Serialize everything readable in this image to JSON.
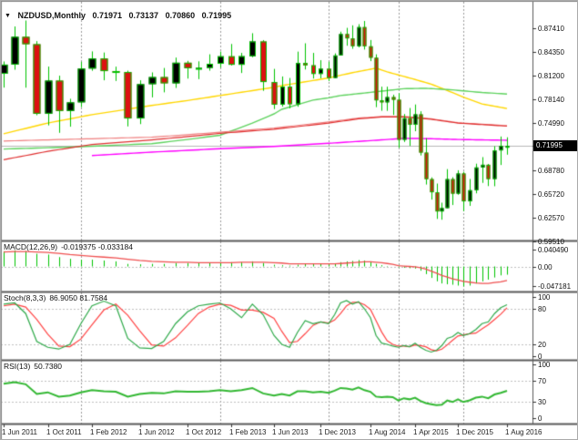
{
  "header": {
    "dropdown_icon": "▼",
    "symbol": "NZDUSD,Monthly",
    "open": "0.71971",
    "high": "0.73137",
    "low": "0.70860",
    "close": "0.71995"
  },
  "colors": {
    "bull_body": "#000000",
    "bear_body": "#dd1111",
    "candle_outline": "#00c400",
    "wick": "#00c400",
    "ma_yellow": "#ffd700",
    "ma_green": "#5fd35f",
    "ma_red": "#e03030",
    "ma_salmon": "#f08080",
    "ma_magenta": "#ff00ff",
    "macd_hist": "#00c400",
    "macd_signal": "#f05050",
    "stoch_main": "#2faa4a",
    "stoch_signal": "#ff4444",
    "rsi_line": "#33b833",
    "price_line": "#b8b8b8",
    "grid": "#999999",
    "level_dash": "#c0c0c0",
    "tag_bg": "#000000",
    "tag_fg": "#ffffff",
    "frame": "#5a5a5a",
    "text": "#111111"
  },
  "chart_data": {
    "type": "candlestick",
    "symbol": "NZDUSD",
    "timeframe": "Monthly",
    "current_price": 0.71995,
    "price_axis": [
      "0.87410",
      "0.84350",
      "0.81200",
      "0.78140",
      "0.74990",
      "0.68780",
      "0.65720",
      "0.62570",
      "0.59510"
    ],
    "x_labels": [
      {
        "text": "1 Jun 2011",
        "month": 0
      },
      {
        "text": "1 Oct 2011",
        "month": 4
      },
      {
        "text": "1 Feb 2012",
        "month": 8
      },
      {
        "text": "1 Jun 2012",
        "month": 12
      },
      {
        "text": "1 Oct 2012",
        "month": 16
      },
      {
        "text": "1 Feb 2013",
        "month": 20
      },
      {
        "text": "1 Jun 2013",
        "month": 24
      },
      {
        "text": "1 Dec 2013",
        "month": 30
      },
      {
        "text": "1 Aug 2014",
        "month": 38
      },
      {
        "text": "1 Apr 2015",
        "month": 46
      },
      {
        "text": "1 Dec 2015",
        "month": 54
      },
      {
        "text": "1 Aug 2016",
        "month": 62
      }
    ],
    "year_gridline_months": [
      7,
      19,
      31,
      43,
      55
    ],
    "x_anchors": [
      [
        0,
        3
      ],
      [
        8,
        100
      ],
      [
        16,
        205
      ],
      [
        24,
        300
      ],
      [
        31,
        360
      ],
      [
        38,
        406
      ],
      [
        46,
        455
      ],
      [
        55,
        508
      ],
      [
        62,
        556
      ]
    ],
    "months": [
      "2011-06",
      "2011-07",
      "2011-08",
      "2011-09",
      "2011-10",
      "2011-11",
      "2011-12",
      "2012-01",
      "2012-02",
      "2012-03",
      "2012-04",
      "2012-05",
      "2012-06",
      "2012-07",
      "2012-08",
      "2012-09",
      "2012-10",
      "2012-11",
      "2012-12",
      "2013-01",
      "2013-02",
      "2013-03",
      "2013-04",
      "2013-05",
      "2013-06",
      "2013-07",
      "2013-08",
      "2013-09",
      "2013-10",
      "2013-11",
      "2013-12",
      "2014-01",
      "2014-02",
      "2014-03",
      "2014-04",
      "2014-05",
      "2014-06",
      "2014-07",
      "2014-08",
      "2014-09",
      "2014-10",
      "2014-11",
      "2014-12",
      "2015-01",
      "2015-02",
      "2015-03",
      "2015-04",
      "2015-05",
      "2015-06",
      "2015-07",
      "2015-08",
      "2015-09",
      "2015-10",
      "2015-11",
      "2015-12",
      "2016-01",
      "2016-02",
      "2016-03",
      "2016-04",
      "2016-05",
      "2016-06",
      "2016-07",
      "2016-08"
    ],
    "candles": [
      [
        0.8145,
        0.8306,
        0.7964,
        0.8265
      ],
      [
        0.8265,
        0.8764,
        0.8198,
        0.8629
      ],
      [
        0.8629,
        0.8842,
        0.7963,
        0.8532
      ],
      [
        0.8532,
        0.8572,
        0.7602,
        0.7622
      ],
      [
        0.7622,
        0.8239,
        0.7469,
        0.8056
      ],
      [
        0.8056,
        0.812,
        0.7372,
        0.7658
      ],
      [
        0.7658,
        0.7818,
        0.7452,
        0.7771
      ],
      [
        0.7771,
        0.8303,
        0.7708,
        0.8213
      ],
      [
        0.8213,
        0.8438,
        0.8184,
        0.8345
      ],
      [
        0.8345,
        0.8423,
        0.806,
        0.818
      ],
      [
        0.818,
        0.8238,
        0.8051,
        0.8168
      ],
      [
        0.8168,
        0.8186,
        0.7456,
        0.756
      ],
      [
        0.756,
        0.806,
        0.7486,
        0.8009
      ],
      [
        0.8009,
        0.8163,
        0.7836,
        0.8102
      ],
      [
        0.8102,
        0.8221,
        0.7902,
        0.802
      ],
      [
        0.802,
        0.8357,
        0.796,
        0.829
      ],
      [
        0.829,
        0.8314,
        0.8082,
        0.8218
      ],
      [
        0.8218,
        0.8308,
        0.8075,
        0.8222
      ],
      [
        0.8222,
        0.84,
        0.8186,
        0.8276
      ],
      [
        0.8276,
        0.8436,
        0.8225,
        0.8374
      ],
      [
        0.8374,
        0.8535,
        0.8253,
        0.8263
      ],
      [
        0.8263,
        0.8418,
        0.8155,
        0.8375
      ],
      [
        0.8375,
        0.8676,
        0.8361,
        0.8568
      ],
      [
        0.8568,
        0.8585,
        0.7922,
        0.8037
      ],
      [
        0.8037,
        0.8209,
        0.7683,
        0.7741
      ],
      [
        0.7741,
        0.811,
        0.7714,
        0.7976
      ],
      [
        0.7976,
        0.809,
        0.7692,
        0.7747
      ],
      [
        0.7747,
        0.8435,
        0.7713,
        0.8286
      ],
      [
        0.8286,
        0.8544,
        0.8201,
        0.8256
      ],
      [
        0.8256,
        0.8418,
        0.8083,
        0.8143
      ],
      [
        0.8143,
        0.8323,
        0.8085,
        0.821
      ],
      [
        0.821,
        0.8303,
        0.805,
        0.809
      ],
      [
        0.809,
        0.8412,
        0.8088,
        0.8385
      ],
      [
        0.8385,
        0.8696,
        0.8383,
        0.8665
      ],
      [
        0.8665,
        0.8746,
        0.8512,
        0.8608
      ],
      [
        0.8608,
        0.8779,
        0.8472,
        0.8506
      ],
      [
        0.8506,
        0.8794,
        0.849,
        0.8756
      ],
      [
        0.8756,
        0.8836,
        0.8462,
        0.8505
      ],
      [
        0.8505,
        0.8587,
        0.8311,
        0.8355
      ],
      [
        0.8355,
        0.84,
        0.7708,
        0.7797
      ],
      [
        0.7797,
        0.7976,
        0.7661,
        0.7771
      ],
      [
        0.7771,
        0.7976,
        0.766,
        0.784
      ],
      [
        0.784,
        0.7871,
        0.7606,
        0.7805
      ],
      [
        0.7805,
        0.7891,
        0.7176,
        0.7281
      ],
      [
        0.7281,
        0.7618,
        0.7252,
        0.7563
      ],
      [
        0.7563,
        0.7697,
        0.7201,
        0.7478
      ],
      [
        0.7478,
        0.7743,
        0.7393,
        0.7614
      ],
      [
        0.7614,
        0.7654,
        0.7076,
        0.7113
      ],
      [
        0.7113,
        0.7303,
        0.6695,
        0.6766
      ],
      [
        0.6766,
        0.6789,
        0.6498,
        0.6594
      ],
      [
        0.6594,
        0.6708,
        0.6245,
        0.6343
      ],
      [
        0.6343,
        0.6458,
        0.6235,
        0.6387
      ],
      [
        0.6387,
        0.6897,
        0.6386,
        0.6766
      ],
      [
        0.6766,
        0.6791,
        0.6427,
        0.6576
      ],
      [
        0.6576,
        0.6882,
        0.6562,
        0.684
      ],
      [
        0.684,
        0.6862,
        0.6347,
        0.6475
      ],
      [
        0.6475,
        0.6768,
        0.6416,
        0.6621
      ],
      [
        0.6621,
        0.6968,
        0.658,
        0.6919
      ],
      [
        0.6919,
        0.7054,
        0.6717,
        0.6954
      ],
      [
        0.6954,
        0.6964,
        0.6675,
        0.6767
      ],
      [
        0.6767,
        0.7197,
        0.6673,
        0.7142
      ],
      [
        0.7142,
        0.7324,
        0.6951,
        0.7202
      ],
      [
        0.71971,
        0.73137,
        0.7086,
        0.71995
      ]
    ],
    "ma_lines": [
      {
        "name": "ma-fast-yellow",
        "color_key": "ma_yellow",
        "width": 1.4,
        "anchors": [
          [
            0,
            0.736
          ],
          [
            4,
            0.75
          ],
          [
            8,
            0.761
          ],
          [
            13,
            0.773
          ],
          [
            19,
            0.786
          ],
          [
            25,
            0.799
          ],
          [
            31,
            0.809
          ],
          [
            35,
            0.816
          ],
          [
            39,
            0.822
          ],
          [
            41,
            0.817
          ],
          [
            44,
            0.811
          ],
          [
            49,
            0.801
          ],
          [
            54,
            0.787
          ],
          [
            58,
            0.775
          ],
          [
            62,
            0.769
          ]
        ]
      },
      {
        "name": "ma-mid-green",
        "color_key": "ma_green",
        "width": 1.4,
        "anchors": [
          [
            0,
            0.716
          ],
          [
            7,
            0.719
          ],
          [
            13,
            0.723
          ],
          [
            19,
            0.734
          ],
          [
            22,
            0.75
          ],
          [
            25,
            0.768
          ],
          [
            29,
            0.78
          ],
          [
            33,
            0.786
          ],
          [
            39,
            0.791
          ],
          [
            44,
            0.795
          ],
          [
            48,
            0.7955
          ],
          [
            53,
            0.7935
          ],
          [
            58,
            0.79
          ],
          [
            62,
            0.788
          ]
        ]
      },
      {
        "name": "ma-slow-salmon",
        "color_key": "ma_salmon",
        "width": 1.2,
        "anchors": [
          [
            0,
            0.7265
          ],
          [
            4,
            0.728
          ],
          [
            8,
            0.7295
          ],
          [
            13,
            0.7315
          ],
          [
            19,
            0.738
          ],
          [
            25,
            0.7445
          ],
          [
            31,
            0.7515
          ],
          [
            36,
            0.7565
          ],
          [
            40,
            0.7585
          ],
          [
            44,
            0.7585
          ],
          [
            49,
            0.7555
          ],
          [
            54,
            0.7505
          ],
          [
            58,
            0.7485
          ],
          [
            62,
            0.7465
          ]
        ]
      },
      {
        "name": "ma-slow-red",
        "color_key": "ma_red",
        "width": 1.2,
        "anchors": [
          [
            0,
            0.702
          ],
          [
            4,
            0.713
          ],
          [
            8,
            0.722
          ],
          [
            13,
            0.728
          ],
          [
            19,
            0.7365
          ],
          [
            25,
            0.743
          ],
          [
            31,
            0.75
          ],
          [
            36,
            0.7555
          ],
          [
            40,
            0.758
          ],
          [
            44,
            0.758
          ],
          [
            49,
            0.755
          ],
          [
            54,
            0.75
          ],
          [
            58,
            0.748
          ],
          [
            62,
            0.746
          ]
        ]
      },
      {
        "name": "ma-long-magenta",
        "color_key": "ma_magenta",
        "width": 1.4,
        "anchors": [
          [
            8,
            0.7075
          ],
          [
            13,
            0.712
          ],
          [
            19,
            0.7165
          ],
          [
            25,
            0.72
          ],
          [
            31,
            0.7235
          ],
          [
            36,
            0.726
          ],
          [
            40,
            0.728
          ],
          [
            44,
            0.73
          ],
          [
            49,
            0.7295
          ],
          [
            54,
            0.7285
          ],
          [
            58,
            0.728
          ],
          [
            62,
            0.7275
          ]
        ]
      }
    ],
    "panels": {
      "macd": {
        "label": "MACD(12,26,9)",
        "values_text": "-0.019375 -0.033184",
        "axis": [
          "0.040490",
          "0.00",
          "-0.047181"
        ],
        "zero_level": 0,
        "histogram": [
          0.036,
          0.038,
          0.036,
          0.03,
          0.028,
          0.022,
          0.018,
          0.016,
          0.016,
          0.014,
          0.012,
          0.006,
          0.005,
          0.006,
          0.006,
          0.008,
          0.008,
          0.008,
          0.009,
          0.01,
          0.01,
          0.01,
          0.012,
          0.008,
          0.004,
          0.003,
          0.002,
          0.004,
          0.006,
          0.006,
          0.006,
          0.005,
          0.007,
          0.01,
          0.012,
          0.013,
          0.015,
          0.014,
          0.012,
          0.006,
          0.003,
          0.001,
          0.0,
          -0.002,
          -0.003,
          -0.004,
          -0.005,
          -0.01,
          -0.018,
          -0.027,
          -0.035,
          -0.04,
          -0.042,
          -0.043,
          -0.045,
          -0.047,
          -0.045,
          -0.04,
          -0.035,
          -0.031,
          -0.026,
          -0.021,
          -0.0194
        ],
        "signal": [
          0.034,
          0.035,
          0.035,
          0.034,
          0.033,
          0.031,
          0.028,
          0.026,
          0.024,
          0.022,
          0.02,
          0.017,
          0.014,
          0.012,
          0.011,
          0.01,
          0.01,
          0.009,
          0.009,
          0.009,
          0.009,
          0.01,
          0.01,
          0.01,
          0.009,
          0.008,
          0.006,
          0.006,
          0.006,
          0.006,
          0.006,
          0.006,
          0.006,
          0.007,
          0.008,
          0.009,
          0.01,
          0.011,
          0.011,
          0.01,
          0.009,
          0.007,
          0.005,
          0.002,
          0.001,
          0.0,
          -0.001,
          -0.003,
          -0.006,
          -0.011,
          -0.016,
          -0.021,
          -0.025,
          -0.029,
          -0.032,
          -0.035,
          -0.037,
          -0.039,
          -0.04,
          -0.04,
          -0.038,
          -0.036,
          -0.0332
        ]
      },
      "stoch": {
        "label": "Stoch(8,3,3)",
        "values_text": "86.9050 81.7584",
        "axis": [
          "100",
          "80",
          "20",
          "0"
        ],
        "levels": [
          80,
          20
        ],
        "main": [
          88,
          90,
          72,
          25,
          15,
          12,
          20,
          55,
          85,
          93,
          85,
          30,
          14,
          13,
          25,
          55,
          75,
          85,
          88,
          90,
          80,
          65,
          88,
          70,
          35,
          20,
          15,
          40,
          60,
          55,
          58,
          55,
          70,
          90,
          94,
          88,
          92,
          80,
          65,
          35,
          22,
          20,
          17,
          15,
          18,
          16,
          22,
          15,
          10,
          7,
          10,
          18,
          30,
          33,
          40,
          35,
          38,
          45,
          55,
          58,
          72,
          82,
          86.9
        ],
        "signal": [
          85,
          88,
          83,
          62,
          37,
          17,
          16,
          29,
          53,
          78,
          88,
          69,
          43,
          19,
          17,
          31,
          52,
          72,
          83,
          88,
          86,
          78,
          78,
          74,
          64,
          42,
          23,
          25,
          38,
          52,
          58,
          56,
          61,
          72,
          85,
          91,
          91,
          87,
          79,
          60,
          41,
          26,
          20,
          17,
          17,
          16,
          19,
          18,
          16,
          11,
          9,
          12,
          19,
          27,
          34,
          36,
          38,
          39,
          46,
          53,
          62,
          71,
          81.8
        ]
      },
      "rsi": {
        "label": "RSI(13)",
        "values_text": "50.7380",
        "axis": [
          "100",
          "70",
          "30",
          "0"
        ],
        "levels": [
          70,
          30
        ],
        "values": [
          64,
          67,
          63,
          45,
          48,
          40,
          42,
          48,
          52,
          50,
          49,
          40,
          45,
          47,
          46,
          50,
          49,
          49,
          50,
          52,
          50,
          52,
          56,
          46,
          42,
          45,
          42,
          50,
          50,
          48,
          49,
          47,
          51,
          56,
          55,
          53,
          57,
          52,
          49,
          40,
          39,
          40,
          39,
          33,
          37,
          35,
          38,
          32,
          28,
          26,
          24,
          25,
          33,
          30,
          35,
          30,
          33,
          38,
          40,
          37,
          44,
          47,
          50.74
        ]
      }
    }
  }
}
